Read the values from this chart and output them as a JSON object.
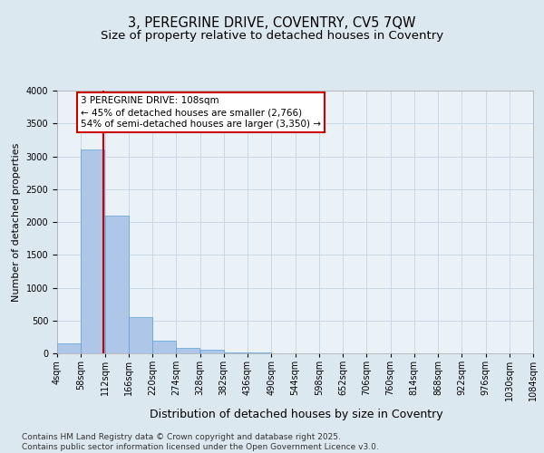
{
  "title1": "3, PEREGRINE DRIVE, COVENTRY, CV5 7QW",
  "title2": "Size of property relative to detached houses in Coventry",
  "xlabel": "Distribution of detached houses by size in Coventry",
  "ylabel": "Number of detached properties",
  "annotation_title": "3 PEREGRINE DRIVE: 108sqm",
  "annotation_line1": "← 45% of detached houses are smaller (2,766)",
  "annotation_line2": "54% of semi-detached houses are larger (3,350) →",
  "property_size": 108,
  "bin_edges": [
    4,
    58,
    112,
    166,
    220,
    274,
    328,
    382,
    436,
    490,
    544,
    598,
    652,
    706,
    760,
    814,
    868,
    922,
    976,
    1030,
    1084
  ],
  "bar_heights": [
    150,
    3100,
    2100,
    550,
    200,
    80,
    50,
    20,
    10,
    5,
    3,
    2,
    1,
    1,
    1,
    0,
    0,
    0,
    0,
    0
  ],
  "bar_color": "#aec6e8",
  "bar_edge_color": "#5a9fd4",
  "red_line_color": "#cc0000",
  "grid_color": "#c8d8e8",
  "background_color": "#dce8f0",
  "plot_bg_color": "#eaf2f8",
  "annotation_box_color": "#ffffff",
  "annotation_box_edge": "#cc0000",
  "ylim": [
    0,
    4000
  ],
  "yticks": [
    0,
    500,
    1000,
    1500,
    2000,
    2500,
    3000,
    3500,
    4000
  ],
  "footer_line1": "Contains HM Land Registry data © Crown copyright and database right 2025.",
  "footer_line2": "Contains public sector information licensed under the Open Government Licence v3.0.",
  "title_fontsize": 10.5,
  "subtitle_fontsize": 9.5,
  "xlabel_fontsize": 9,
  "ylabel_fontsize": 8,
  "tick_fontsize": 7,
  "annotation_fontsize": 7.5,
  "footer_fontsize": 6.5
}
